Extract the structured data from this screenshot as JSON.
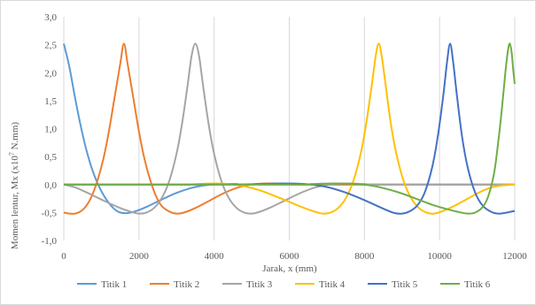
{
  "chart_data": {
    "type": "line",
    "title": "",
    "xlabel": "Jarak, x (mm)",
    "ylabel_parts": [
      "Momen lentur, Mx (x10",
      "7",
      " N.mm)"
    ],
    "xlim": [
      0,
      12000
    ],
    "ylim": [
      -1.0,
      3.0
    ],
    "x_ticks": [
      0,
      2000,
      4000,
      6000,
      8000,
      10000,
      12000
    ],
    "x_tick_labels": [
      "0",
      "2000",
      "4000",
      "6000",
      "8000",
      "10000",
      "12000"
    ],
    "y_ticks": [
      -1.0,
      -0.5,
      0.0,
      0.5,
      1.0,
      1.5,
      2.0,
      2.5,
      3.0
    ],
    "y_tick_labels": [
      "-1,0",
      "-0,5",
      "0,0",
      "0,5",
      "1,0",
      "1,5",
      "2,0",
      "2,5",
      "3,0"
    ],
    "grid": "vertical",
    "legend_position": "bottom",
    "series": [
      {
        "name": "Titik 1",
        "color": "#5B9BD5",
        "points": [
          [
            0,
            2.52
          ],
          [
            150,
            2.1
          ],
          [
            300,
            1.55
          ],
          [
            450,
            1.05
          ],
          [
            600,
            0.62
          ],
          [
            750,
            0.28
          ],
          [
            900,
            0.02
          ],
          [
            1050,
            -0.18
          ],
          [
            1200,
            -0.33
          ],
          [
            1350,
            -0.44
          ],
          [
            1500,
            -0.5
          ],
          [
            1700,
            -0.51
          ],
          [
            1900,
            -0.48
          ],
          [
            2200,
            -0.4
          ],
          [
            2600,
            -0.27
          ],
          [
            3000,
            -0.15
          ],
          [
            3400,
            -0.06
          ],
          [
            3800,
            -0.01
          ],
          [
            4200,
            0.01
          ],
          [
            4600,
            0.01
          ],
          [
            5200,
            0.0
          ],
          [
            12000,
            0.0
          ]
        ]
      },
      {
        "name": "Titik 2",
        "color": "#ED7D31",
        "points": [
          [
            0,
            -0.5
          ],
          [
            150,
            -0.52
          ],
          [
            300,
            -0.52
          ],
          [
            450,
            -0.48
          ],
          [
            600,
            -0.38
          ],
          [
            750,
            -0.2
          ],
          [
            900,
            0.08
          ],
          [
            1050,
            0.45
          ],
          [
            1200,
            0.95
          ],
          [
            1350,
            1.55
          ],
          [
            1500,
            2.15
          ],
          [
            1600,
            2.52
          ],
          [
            1700,
            2.15
          ],
          [
            1850,
            1.55
          ],
          [
            2000,
            0.95
          ],
          [
            2150,
            0.45
          ],
          [
            2300,
            0.08
          ],
          [
            2450,
            -0.2
          ],
          [
            2600,
            -0.38
          ],
          [
            2800,
            -0.48
          ],
          [
            3000,
            -0.52
          ],
          [
            3200,
            -0.5
          ],
          [
            3500,
            -0.42
          ],
          [
            3900,
            -0.28
          ],
          [
            4300,
            -0.14
          ],
          [
            4700,
            -0.04
          ],
          [
            5100,
            0.01
          ],
          [
            5500,
            0.02
          ],
          [
            6000,
            0.01
          ],
          [
            6500,
            0.0
          ],
          [
            12000,
            0.0
          ]
        ]
      },
      {
        "name": "Titik 3",
        "color": "#A5A5A5",
        "points": [
          [
            0,
            0.0
          ],
          [
            300,
            -0.05
          ],
          [
            700,
            -0.17
          ],
          [
            1100,
            -0.3
          ],
          [
            1500,
            -0.42
          ],
          [
            1800,
            -0.49
          ],
          [
            2000,
            -0.52
          ],
          [
            2200,
            -0.5
          ],
          [
            2400,
            -0.42
          ],
          [
            2600,
            -0.25
          ],
          [
            2800,
            0.05
          ],
          [
            3000,
            0.55
          ],
          [
            3150,
            1.1
          ],
          [
            3300,
            1.8
          ],
          [
            3400,
            2.3
          ],
          [
            3500,
            2.52
          ],
          [
            3600,
            2.3
          ],
          [
            3700,
            1.8
          ],
          [
            3850,
            1.1
          ],
          [
            4000,
            0.55
          ],
          [
            4200,
            0.05
          ],
          [
            4400,
            -0.25
          ],
          [
            4600,
            -0.42
          ],
          [
            4800,
            -0.5
          ],
          [
            5000,
            -0.52
          ],
          [
            5200,
            -0.49
          ],
          [
            5500,
            -0.41
          ],
          [
            5900,
            -0.28
          ],
          [
            6300,
            -0.15
          ],
          [
            6700,
            -0.05
          ],
          [
            7100,
            0.0
          ],
          [
            7500,
            0.02
          ],
          [
            8000,
            0.01
          ],
          [
            8500,
            0.0
          ],
          [
            12000,
            0.0
          ]
        ]
      },
      {
        "name": "Titik 4",
        "color": "#FFC000",
        "points": [
          [
            0,
            0.0
          ],
          [
            3000,
            0.0
          ],
          [
            3600,
            0.01
          ],
          [
            4000,
            0.02
          ],
          [
            4400,
            0.01
          ],
          [
            4800,
            -0.03
          ],
          [
            5200,
            -0.1
          ],
          [
            5600,
            -0.2
          ],
          [
            6000,
            -0.31
          ],
          [
            6400,
            -0.42
          ],
          [
            6700,
            -0.49
          ],
          [
            6900,
            -0.52
          ],
          [
            7100,
            -0.5
          ],
          [
            7300,
            -0.42
          ],
          [
            7500,
            -0.25
          ],
          [
            7700,
            0.05
          ],
          [
            7900,
            0.55
          ],
          [
            8050,
            1.1
          ],
          [
            8200,
            1.8
          ],
          [
            8300,
            2.3
          ],
          [
            8380,
            2.52
          ],
          [
            8460,
            2.3
          ],
          [
            8560,
            1.8
          ],
          [
            8700,
            1.1
          ],
          [
            8850,
            0.55
          ],
          [
            9050,
            0.05
          ],
          [
            9250,
            -0.25
          ],
          [
            9450,
            -0.42
          ],
          [
            9650,
            -0.5
          ],
          [
            9850,
            -0.52
          ],
          [
            10100,
            -0.47
          ],
          [
            10400,
            -0.38
          ],
          [
            10700,
            -0.27
          ],
          [
            11000,
            -0.16
          ],
          [
            11300,
            -0.07
          ],
          [
            11600,
            -0.02
          ],
          [
            12000,
            0.0
          ]
        ]
      },
      {
        "name": "Titik 5",
        "color": "#4472C4",
        "points": [
          [
            0,
            0.0
          ],
          [
            4000,
            0.0
          ],
          [
            4600,
            0.0
          ],
          [
            5200,
            0.01
          ],
          [
            5800,
            0.02
          ],
          [
            6400,
            0.01
          ],
          [
            6900,
            -0.03
          ],
          [
            7400,
            -0.12
          ],
          [
            7900,
            -0.25
          ],
          [
            8300,
            -0.37
          ],
          [
            8600,
            -0.46
          ],
          [
            8800,
            -0.51
          ],
          [
            9000,
            -0.52
          ],
          [
            9200,
            -0.48
          ],
          [
            9400,
            -0.38
          ],
          [
            9600,
            -0.15
          ],
          [
            9800,
            0.3
          ],
          [
            9950,
            0.85
          ],
          [
            10100,
            1.6
          ],
          [
            10200,
            2.2
          ],
          [
            10280,
            2.52
          ],
          [
            10360,
            2.2
          ],
          [
            10460,
            1.6
          ],
          [
            10600,
            0.85
          ],
          [
            10750,
            0.3
          ],
          [
            10950,
            -0.15
          ],
          [
            11150,
            -0.38
          ],
          [
            11350,
            -0.48
          ],
          [
            11550,
            -0.52
          ],
          [
            11800,
            -0.5
          ],
          [
            12000,
            -0.47
          ]
        ]
      },
      {
        "name": "Titik 6",
        "color": "#70AD47",
        "points": [
          [
            0,
            0.0
          ],
          [
            6000,
            0.0
          ],
          [
            6600,
            0.01
          ],
          [
            7200,
            0.02
          ],
          [
            7800,
            0.01
          ],
          [
            8200,
            -0.02
          ],
          [
            8600,
            -0.08
          ],
          [
            9000,
            -0.16
          ],
          [
            9400,
            -0.26
          ],
          [
            9800,
            -0.36
          ],
          [
            10200,
            -0.44
          ],
          [
            10500,
            -0.49
          ],
          [
            10750,
            -0.52
          ],
          [
            10950,
            -0.5
          ],
          [
            11150,
            -0.4
          ],
          [
            11300,
            -0.2
          ],
          [
            11450,
            0.2
          ],
          [
            11550,
            0.7
          ],
          [
            11650,
            1.3
          ],
          [
            11750,
            2.0
          ],
          [
            11820,
            2.4
          ],
          [
            11870,
            2.52
          ],
          [
            11920,
            2.35
          ],
          [
            11960,
            2.05
          ],
          [
            12000,
            1.8
          ]
        ]
      }
    ]
  }
}
